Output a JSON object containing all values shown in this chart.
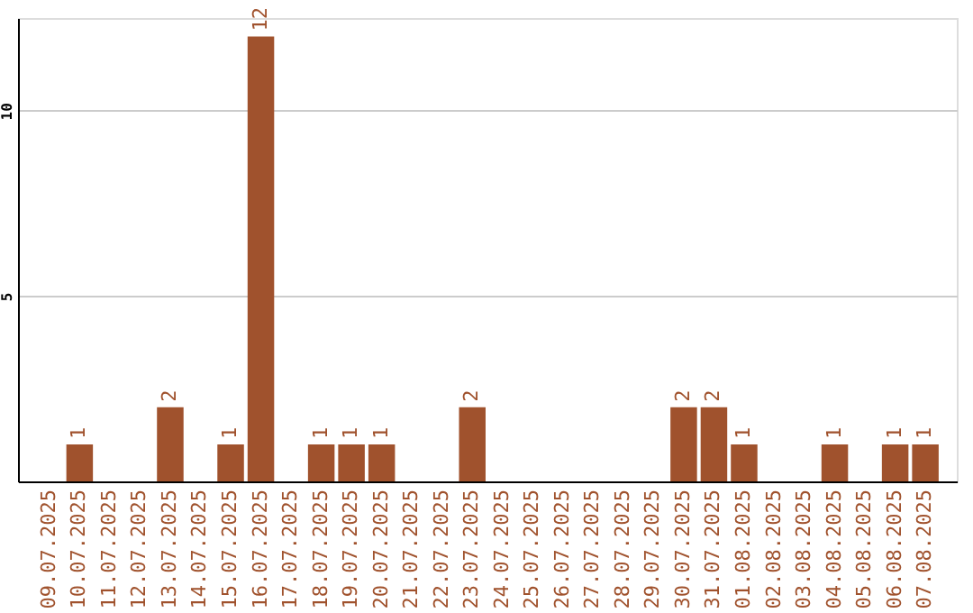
{
  "chart_data": {
    "type": "bar",
    "categories": [
      "09.07.2025",
      "10.07.2025",
      "11.07.2025",
      "12.07.2025",
      "13.07.2025",
      "14.07.2025",
      "15.07.2025",
      "16.07.2025",
      "17.07.2025",
      "18.07.2025",
      "19.07.2025",
      "20.07.2025",
      "21.07.2025",
      "22.07.2025",
      "23.07.2025",
      "24.07.2025",
      "25.07.2025",
      "26.07.2025",
      "27.07.2025",
      "28.07.2025",
      "29.07.2025",
      "30.07.2025",
      "31.07.2025",
      "01.08.2025",
      "02.08.2025",
      "03.08.2025",
      "04.08.2025",
      "05.08.2025",
      "06.08.2025",
      "07.08.2025"
    ],
    "values": [
      0,
      1,
      0,
      0,
      2,
      0,
      1,
      12,
      0,
      1,
      1,
      1,
      0,
      0,
      2,
      0,
      0,
      0,
      0,
      0,
      0,
      2,
      2,
      1,
      0,
      0,
      1,
      0,
      1,
      1
    ],
    "value_labels": [
      null,
      "1",
      null,
      null,
      "2",
      null,
      "1",
      "12",
      null,
      "1",
      "1",
      "1",
      null,
      null,
      "2",
      null,
      null,
      null,
      null,
      null,
      null,
      "2",
      "2",
      "1",
      null,
      null,
      "1",
      null,
      "1",
      "1"
    ],
    "color": "#a0522d",
    "ylim": [
      0,
      12.5
    ],
    "yticks": [
      5,
      10
    ],
    "grid": "y"
  }
}
